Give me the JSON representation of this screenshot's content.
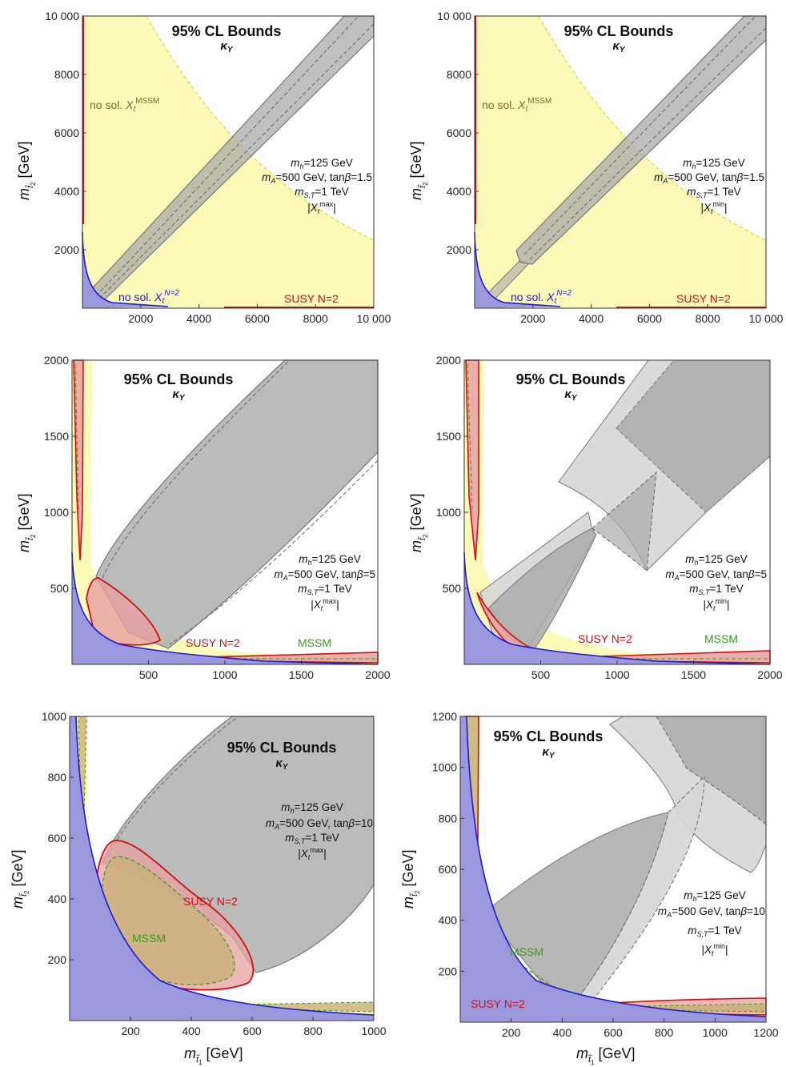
{
  "figure": {
    "x_axis_label": "m",
    "x_axis_sub": "t̃",
    "x_axis_subsub": "1",
    "x_axis_unit": " [GeV]",
    "y_axis_label": "m",
    "y_axis_sub": "t̃",
    "y_axis_subsub": "2",
    "y_axis_unit": " [GeV]"
  },
  "colors": {
    "no_solution_mssm": "#fdf9b8",
    "no_solution_n2": "#9b98de",
    "susy_n2": "#e8a0a2",
    "mssm": "#c8b07a",
    "excluded": "#aaaaaa",
    "excluded_light": "#d6d6d6",
    "red_line": "#cc1111",
    "blue_line": "#1a1ad6",
    "green_line": "#3a9a1a",
    "yellow_line": "#e8e050"
  },
  "chart_data": [
    {
      "type": "area",
      "panel": "top-left",
      "title": "95% CL Bounds",
      "subtitle": "κY",
      "xlim": [
        0,
        10000
      ],
      "ylim": [
        0,
        10000
      ],
      "x_ticks": [
        "2000",
        "4000",
        "6000",
        "8000",
        "10 000"
      ],
      "y_ticks": [
        "2000",
        "4000",
        "6000",
        "8000",
        "10 000"
      ],
      "info": [
        "mh=125 GeV",
        "mA=500 GeV, tanβ=1.5",
        "mS,T=1 TeV",
        "|Xt^max|"
      ],
      "labels": [
        "no sol. Xt^MSSM",
        "no sol. Xt^N=2",
        "SUSY N=2"
      ]
    },
    {
      "type": "area",
      "panel": "top-right",
      "title": "95% CL Bounds",
      "subtitle": "κY",
      "xlim": [
        0,
        10000
      ],
      "ylim": [
        0,
        10000
      ],
      "x_ticks": [
        "2000",
        "4000",
        "6000",
        "8000",
        "10 000"
      ],
      "y_ticks": [
        "2000",
        "4000",
        "6000",
        "8000",
        "10 000"
      ],
      "info": [
        "mh=125 GeV",
        "mA=500 GeV, tanβ=1.5",
        "mS,T=1 TeV",
        "|Xt^min|"
      ],
      "labels": [
        "no sol. Xt^MSSM",
        "no sol. Xt^N=2",
        "SUSY N=2"
      ]
    },
    {
      "type": "area",
      "panel": "middle-left",
      "title": "95% CL Bounds",
      "subtitle": "κY",
      "xlim": [
        0,
        2000
      ],
      "ylim": [
        0,
        2000
      ],
      "x_ticks": [
        "500",
        "1000",
        "1500",
        "2000"
      ],
      "y_ticks": [
        "500",
        "1000",
        "1500",
        "2000"
      ],
      "info": [
        "mh=125 GeV",
        "mA=500 GeV, tanβ=5",
        "mS,T=1 TeV",
        "|Xt^max|"
      ],
      "labels": [
        "SUSY N=2",
        "MSSM"
      ]
    },
    {
      "type": "area",
      "panel": "middle-right",
      "title": "95% CL Bounds",
      "subtitle": "κY",
      "xlim": [
        0,
        2000
      ],
      "ylim": [
        0,
        2000
      ],
      "x_ticks": [
        "500",
        "1000",
        "1500",
        "2000"
      ],
      "y_ticks": [
        "500",
        "1000",
        "1500",
        "2000"
      ],
      "info": [
        "mh=125 GeV",
        "mA=500 GeV, tanβ=5",
        "mS,T=1 TeV",
        "|Xt^min|"
      ],
      "labels": [
        "SUSY N=2",
        "MSSM"
      ]
    },
    {
      "type": "area",
      "panel": "bottom-left",
      "title": "95% CL Bounds",
      "subtitle": "κY",
      "xlim": [
        0,
        1000
      ],
      "ylim": [
        0,
        1000
      ],
      "x_ticks": [
        "200",
        "400",
        "600",
        "800",
        "1000"
      ],
      "y_ticks": [
        "200",
        "400",
        "600",
        "800",
        "1000"
      ],
      "info": [
        "mh=125 GeV",
        "mA=500 GeV, tanβ=10",
        "mS,T=1 TeV",
        "|Xt^max|"
      ],
      "labels": [
        "SUSY N=2",
        "MSSM"
      ]
    },
    {
      "type": "area",
      "panel": "bottom-right",
      "title": "95% CL Bounds",
      "subtitle": "κY",
      "xlim": [
        0,
        1200
      ],
      "ylim": [
        0,
        1200
      ],
      "x_ticks": [
        "200",
        "400",
        "600",
        "800",
        "1000",
        "1200"
      ],
      "y_ticks": [
        "200",
        "400",
        "600",
        "800",
        "1000",
        "1200"
      ],
      "info": [
        "mh=125 GeV",
        "mA=500 GeV, tanβ=10",
        "mS,T=1 TeV",
        "|Xt^min|"
      ],
      "labels": [
        "MSSM",
        "SUSY N=2"
      ]
    }
  ]
}
